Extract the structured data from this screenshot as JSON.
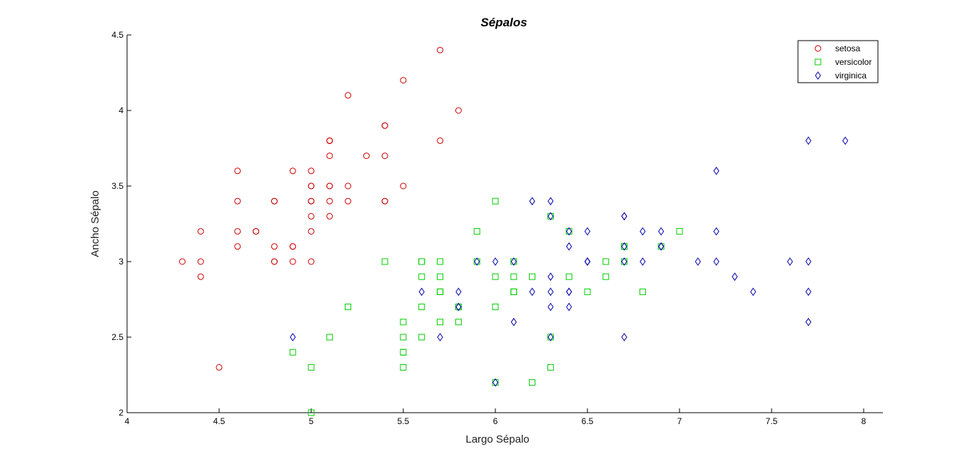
{
  "chart_data": {
    "type": "scatter",
    "title": "Sépalos",
    "xlabel": "Largo Sépalo",
    "ylabel": "Ancho Sépalo",
    "xlim": [
      4,
      8.1
    ],
    "ylim": [
      2,
      4.5
    ],
    "xticks": [
      4,
      4.5,
      5,
      5.5,
      6,
      6.5,
      7,
      7.5,
      8
    ],
    "yticks": [
      2,
      2.5,
      3,
      3.5,
      4,
      4.5
    ],
    "xtick_labels": [
      "4",
      "4.5",
      "5",
      "5.5",
      "6",
      "6.5",
      "7",
      "7.5",
      "8"
    ],
    "ytick_labels": [
      "2",
      "2.5",
      "3",
      "3.5",
      "4",
      "4.5"
    ],
    "grid": false,
    "legend_position": "top-right",
    "series": [
      {
        "name": "setosa",
        "marker": "circle",
        "color": "#cc0000",
        "points": [
          [
            5.1,
            3.5
          ],
          [
            4.9,
            3.0
          ],
          [
            4.7,
            3.2
          ],
          [
            4.6,
            3.1
          ],
          [
            5.0,
            3.6
          ],
          [
            5.4,
            3.9
          ],
          [
            4.6,
            3.4
          ],
          [
            5.0,
            3.4
          ],
          [
            4.4,
            2.9
          ],
          [
            4.9,
            3.1
          ],
          [
            5.4,
            3.7
          ],
          [
            4.8,
            3.4
          ],
          [
            4.8,
            3.0
          ],
          [
            4.3,
            3.0
          ],
          [
            5.8,
            4.0
          ],
          [
            5.7,
            4.4
          ],
          [
            5.4,
            3.9
          ],
          [
            5.1,
            3.5
          ],
          [
            5.7,
            3.8
          ],
          [
            5.1,
            3.8
          ],
          [
            5.4,
            3.4
          ],
          [
            5.1,
            3.7
          ],
          [
            4.6,
            3.6
          ],
          [
            5.1,
            3.3
          ],
          [
            4.8,
            3.4
          ],
          [
            5.0,
            3.0
          ],
          [
            5.0,
            3.4
          ],
          [
            5.2,
            3.5
          ],
          [
            5.2,
            3.4
          ],
          [
            4.7,
            3.2
          ],
          [
            4.8,
            3.1
          ],
          [
            5.4,
            3.4
          ],
          [
            5.2,
            4.1
          ],
          [
            5.5,
            4.2
          ],
          [
            4.9,
            3.1
          ],
          [
            5.0,
            3.2
          ],
          [
            5.5,
            3.5
          ],
          [
            4.9,
            3.6
          ],
          [
            4.4,
            3.0
          ],
          [
            5.1,
            3.4
          ],
          [
            5.0,
            3.5
          ],
          [
            4.5,
            2.3
          ],
          [
            4.4,
            3.2
          ],
          [
            5.0,
            3.5
          ],
          [
            5.1,
            3.8
          ],
          [
            4.8,
            3.0
          ],
          [
            5.1,
            3.8
          ],
          [
            4.6,
            3.2
          ],
          [
            5.3,
            3.7
          ],
          [
            5.0,
            3.3
          ]
        ]
      },
      {
        "name": "versicolor",
        "marker": "square",
        "color": "#00cc00",
        "points": [
          [
            7.0,
            3.2
          ],
          [
            6.4,
            3.2
          ],
          [
            6.9,
            3.1
          ],
          [
            5.5,
            2.3
          ],
          [
            6.5,
            2.8
          ],
          [
            5.7,
            2.8
          ],
          [
            6.3,
            3.3
          ],
          [
            4.9,
            2.4
          ],
          [
            6.6,
            2.9
          ],
          [
            5.2,
            2.7
          ],
          [
            5.0,
            2.0
          ],
          [
            5.9,
            3.0
          ],
          [
            6.0,
            2.2
          ],
          [
            6.1,
            2.9
          ],
          [
            5.6,
            2.9
          ],
          [
            6.7,
            3.1
          ],
          [
            5.6,
            3.0
          ],
          [
            5.8,
            2.7
          ],
          [
            6.2,
            2.2
          ],
          [
            5.6,
            2.5
          ],
          [
            5.9,
            3.2
          ],
          [
            6.1,
            2.8
          ],
          [
            6.3,
            2.5
          ],
          [
            6.1,
            2.8
          ],
          [
            6.4,
            2.9
          ],
          [
            6.6,
            3.0
          ],
          [
            6.8,
            2.8
          ],
          [
            6.7,
            3.0
          ],
          [
            6.0,
            2.9
          ],
          [
            5.7,
            2.6
          ],
          [
            5.5,
            2.4
          ],
          [
            5.5,
            2.4
          ],
          [
            5.8,
            2.7
          ],
          [
            6.0,
            2.7
          ],
          [
            5.4,
            3.0
          ],
          [
            6.0,
            3.4
          ],
          [
            6.7,
            3.1
          ],
          [
            6.3,
            2.3
          ],
          [
            5.6,
            3.0
          ],
          [
            5.5,
            2.5
          ],
          [
            5.5,
            2.6
          ],
          [
            6.1,
            3.0
          ],
          [
            5.8,
            2.6
          ],
          [
            5.0,
            2.3
          ],
          [
            5.6,
            2.7
          ],
          [
            5.7,
            3.0
          ],
          [
            5.7,
            2.9
          ],
          [
            6.2,
            2.9
          ],
          [
            5.1,
            2.5
          ],
          [
            5.7,
            2.8
          ]
        ]
      },
      {
        "name": "virginica",
        "marker": "diamond",
        "color": "#0000aa",
        "points": [
          [
            6.3,
            3.3
          ],
          [
            5.8,
            2.7
          ],
          [
            7.1,
            3.0
          ],
          [
            6.3,
            2.9
          ],
          [
            6.5,
            3.0
          ],
          [
            7.6,
            3.0
          ],
          [
            4.9,
            2.5
          ],
          [
            7.3,
            2.9
          ],
          [
            6.7,
            2.5
          ],
          [
            7.2,
            3.6
          ],
          [
            6.5,
            3.2
          ],
          [
            6.4,
            2.7
          ],
          [
            6.8,
            3.0
          ],
          [
            5.7,
            2.5
          ],
          [
            5.8,
            2.8
          ],
          [
            6.4,
            3.2
          ],
          [
            6.5,
            3.0
          ],
          [
            7.7,
            3.8
          ],
          [
            7.7,
            2.6
          ],
          [
            6.0,
            2.2
          ],
          [
            6.9,
            3.2
          ],
          [
            5.6,
            2.8
          ],
          [
            7.7,
            2.8
          ],
          [
            6.3,
            2.7
          ],
          [
            6.7,
            3.3
          ],
          [
            7.2,
            3.2
          ],
          [
            6.2,
            2.8
          ],
          [
            6.1,
            3.0
          ],
          [
            6.4,
            2.8
          ],
          [
            7.2,
            3.0
          ],
          [
            7.4,
            2.8
          ],
          [
            7.9,
            3.8
          ],
          [
            6.4,
            2.8
          ],
          [
            6.3,
            2.8
          ],
          [
            6.1,
            2.6
          ],
          [
            7.7,
            3.0
          ],
          [
            6.3,
            3.4
          ],
          [
            6.4,
            3.1
          ],
          [
            6.0,
            3.0
          ],
          [
            6.9,
            3.1
          ],
          [
            6.7,
            3.1
          ],
          [
            6.9,
            3.1
          ],
          [
            5.8,
            2.7
          ],
          [
            6.8,
            3.2
          ],
          [
            6.7,
            3.3
          ],
          [
            6.7,
            3.0
          ],
          [
            6.3,
            2.5
          ],
          [
            6.5,
            3.0
          ],
          [
            6.2,
            3.4
          ],
          [
            5.9,
            3.0
          ]
        ]
      }
    ]
  }
}
